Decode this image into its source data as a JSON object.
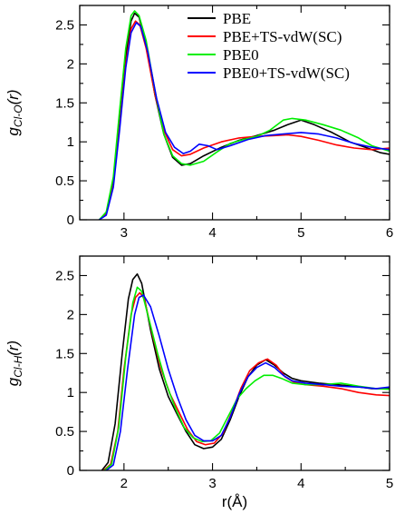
{
  "chart_data": [
    {
      "type": "line",
      "ylabel_main": "g",
      "ylabel_sub": "Cl-O",
      "ylabel_tail": "(r)",
      "xlim": [
        2.5,
        6
      ],
      "ylim": [
        0,
        2.75
      ],
      "xticks": [
        3,
        4,
        5,
        6
      ],
      "xticklabels": [
        "3",
        "4",
        "5",
        "6"
      ],
      "yticks": [
        0,
        0.5,
        1,
        1.5,
        2,
        2.5
      ],
      "yticklabels": [
        "0",
        "0.5",
        "1",
        "1.5",
        "2",
        "2.5"
      ],
      "legend_position": "top-right",
      "series": [
        {
          "name": "PBE",
          "color": "#000000",
          "points": [
            [
              2.72,
              0
            ],
            [
              2.8,
              0.08
            ],
            [
              2.88,
              0.5
            ],
            [
              2.95,
              1.3
            ],
            [
              3.02,
              2.1
            ],
            [
              3.08,
              2.55
            ],
            [
              3.12,
              2.65
            ],
            [
              3.17,
              2.6
            ],
            [
              3.25,
              2.25
            ],
            [
              3.35,
              1.6
            ],
            [
              3.45,
              1.1
            ],
            [
              3.55,
              0.8
            ],
            [
              3.65,
              0.7
            ],
            [
              3.75,
              0.72
            ],
            [
              3.9,
              0.82
            ],
            [
              4.1,
              0.93
            ],
            [
              4.3,
              1.02
            ],
            [
              4.5,
              1.08
            ],
            [
              4.7,
              1.15
            ],
            [
              4.85,
              1.22
            ],
            [
              5.0,
              1.28
            ],
            [
              5.15,
              1.22
            ],
            [
              5.35,
              1.12
            ],
            [
              5.55,
              1.0
            ],
            [
              5.75,
              0.92
            ],
            [
              5.9,
              0.86
            ],
            [
              6.0,
              0.84
            ]
          ]
        },
        {
          "name": "PBE+TS-vdW(SC)",
          "color": "#ff0000",
          "points": [
            [
              2.72,
              0
            ],
            [
              2.8,
              0.07
            ],
            [
              2.88,
              0.45
            ],
            [
              2.95,
              1.2
            ],
            [
              3.02,
              2.0
            ],
            [
              3.08,
              2.45
            ],
            [
              3.13,
              2.55
            ],
            [
              3.18,
              2.5
            ],
            [
              3.25,
              2.2
            ],
            [
              3.35,
              1.6
            ],
            [
              3.45,
              1.15
            ],
            [
              3.55,
              0.9
            ],
            [
              3.65,
              0.82
            ],
            [
              3.75,
              0.84
            ],
            [
              3.9,
              0.92
            ],
            [
              4.1,
              1.0
            ],
            [
              4.3,
              1.05
            ],
            [
              4.5,
              1.07
            ],
            [
              4.7,
              1.08
            ],
            [
              4.85,
              1.09
            ],
            [
              5.0,
              1.07
            ],
            [
              5.2,
              1.02
            ],
            [
              5.4,
              0.96
            ],
            [
              5.6,
              0.92
            ],
            [
              5.8,
              0.9
            ],
            [
              6.0,
              0.92
            ]
          ]
        },
        {
          "name": "PBE0",
          "color": "#00ee00",
          "points": [
            [
              2.72,
              0
            ],
            [
              2.8,
              0.1
            ],
            [
              2.88,
              0.55
            ],
            [
              2.95,
              1.4
            ],
            [
              3.02,
              2.2
            ],
            [
              3.08,
              2.62
            ],
            [
              3.12,
              2.68
            ],
            [
              3.17,
              2.62
            ],
            [
              3.25,
              2.3
            ],
            [
              3.35,
              1.65
            ],
            [
              3.45,
              1.1
            ],
            [
              3.55,
              0.82
            ],
            [
              3.65,
              0.72
            ],
            [
              3.75,
              0.7
            ],
            [
              3.9,
              0.75
            ],
            [
              4.05,
              0.87
            ],
            [
              4.2,
              0.98
            ],
            [
              4.35,
              1.03
            ],
            [
              4.5,
              1.07
            ],
            [
              4.65,
              1.15
            ],
            [
              4.8,
              1.28
            ],
            [
              4.9,
              1.3
            ],
            [
              5.05,
              1.28
            ],
            [
              5.25,
              1.22
            ],
            [
              5.45,
              1.15
            ],
            [
              5.65,
              1.05
            ],
            [
              5.8,
              0.95
            ],
            [
              6.0,
              0.88
            ]
          ]
        },
        {
          "name": "PBE0+TS-vdW(SC)",
          "color": "#0000ff",
          "points": [
            [
              2.72,
              0
            ],
            [
              2.8,
              0.06
            ],
            [
              2.88,
              0.42
            ],
            [
              2.95,
              1.15
            ],
            [
              3.02,
              1.95
            ],
            [
              3.08,
              2.4
            ],
            [
              3.14,
              2.53
            ],
            [
              3.19,
              2.48
            ],
            [
              3.27,
              2.15
            ],
            [
              3.37,
              1.55
            ],
            [
              3.47,
              1.12
            ],
            [
              3.57,
              0.93
            ],
            [
              3.67,
              0.85
            ],
            [
              3.75,
              0.88
            ],
            [
              3.85,
              0.97
            ],
            [
              3.95,
              0.95
            ],
            [
              4.05,
              0.9
            ],
            [
              4.2,
              0.95
            ],
            [
              4.4,
              1.03
            ],
            [
              4.6,
              1.08
            ],
            [
              4.8,
              1.1
            ],
            [
              5.0,
              1.12
            ],
            [
              5.2,
              1.1
            ],
            [
              5.4,
              1.05
            ],
            [
              5.6,
              0.98
            ],
            [
              5.8,
              0.93
            ],
            [
              6.0,
              0.9
            ]
          ]
        }
      ],
      "legend_labels": [
        "PBE",
        "PBE+TS-vdW(SC)",
        "PBE0",
        "PBE0+TS-vdW(SC)"
      ]
    },
    {
      "type": "line",
      "ylabel_main": "g",
      "ylabel_sub": "Cl-H",
      "ylabel_tail": "(r)",
      "xlabel": "r(Å)",
      "xlim": [
        1.5,
        5
      ],
      "ylim": [
        0,
        2.75
      ],
      "xticks": [
        2,
        3,
        4,
        5
      ],
      "xticklabels": [
        "2",
        "3",
        "4",
        "5"
      ],
      "yticks": [
        0,
        0.5,
        1,
        1.5,
        2,
        2.5
      ],
      "yticklabels": [
        "0",
        "0.5",
        "1",
        "1.5",
        "2",
        "2.5"
      ],
      "series": [
        {
          "name": "PBE",
          "color": "#000000",
          "points": [
            [
              1.75,
              0
            ],
            [
              1.82,
              0.1
            ],
            [
              1.9,
              0.6
            ],
            [
              1.98,
              1.5
            ],
            [
              2.05,
              2.2
            ],
            [
              2.1,
              2.45
            ],
            [
              2.15,
              2.52
            ],
            [
              2.2,
              2.4
            ],
            [
              2.3,
              1.8
            ],
            [
              2.4,
              1.3
            ],
            [
              2.5,
              0.95
            ],
            [
              2.6,
              0.72
            ],
            [
              2.7,
              0.5
            ],
            [
              2.8,
              0.33
            ],
            [
              2.9,
              0.28
            ],
            [
              3.0,
              0.3
            ],
            [
              3.1,
              0.4
            ],
            [
              3.2,
              0.65
            ],
            [
              3.3,
              0.95
            ],
            [
              3.4,
              1.2
            ],
            [
              3.5,
              1.35
            ],
            [
              3.6,
              1.42
            ],
            [
              3.7,
              1.35
            ],
            [
              3.8,
              1.25
            ],
            [
              3.9,
              1.18
            ],
            [
              4.0,
              1.15
            ],
            [
              4.2,
              1.12
            ],
            [
              4.4,
              1.1
            ],
            [
              4.6,
              1.08
            ],
            [
              4.8,
              1.05
            ],
            [
              5.0,
              1.05
            ]
          ]
        },
        {
          "name": "PBE+TS-vdW(SC)",
          "color": "#ff0000",
          "points": [
            [
              1.77,
              0
            ],
            [
              1.85,
              0.08
            ],
            [
              1.93,
              0.5
            ],
            [
              2.0,
              1.3
            ],
            [
              2.08,
              2.0
            ],
            [
              2.13,
              2.22
            ],
            [
              2.18,
              2.28
            ],
            [
              2.23,
              2.2
            ],
            [
              2.32,
              1.75
            ],
            [
              2.42,
              1.3
            ],
            [
              2.52,
              0.98
            ],
            [
              2.62,
              0.75
            ],
            [
              2.72,
              0.52
            ],
            [
              2.82,
              0.37
            ],
            [
              2.92,
              0.33
            ],
            [
              3.02,
              0.35
            ],
            [
              3.12,
              0.48
            ],
            [
              3.22,
              0.75
            ],
            [
              3.32,
              1.05
            ],
            [
              3.42,
              1.28
            ],
            [
              3.52,
              1.38
            ],
            [
              3.62,
              1.43
            ],
            [
              3.72,
              1.35
            ],
            [
              3.82,
              1.2
            ],
            [
              3.92,
              1.13
            ],
            [
              4.05,
              1.1
            ],
            [
              4.25,
              1.08
            ],
            [
              4.45,
              1.05
            ],
            [
              4.65,
              1.0
            ],
            [
              4.85,
              0.97
            ],
            [
              5.0,
              0.96
            ]
          ]
        },
        {
          "name": "PBE0",
          "color": "#00ee00",
          "points": [
            [
              1.78,
              0
            ],
            [
              1.86,
              0.08
            ],
            [
              1.94,
              0.55
            ],
            [
              2.02,
              1.45
            ],
            [
              2.1,
              2.15
            ],
            [
              2.15,
              2.35
            ],
            [
              2.2,
              2.3
            ],
            [
              2.28,
              1.95
            ],
            [
              2.38,
              1.5
            ],
            [
              2.48,
              1.1
            ],
            [
              2.58,
              0.8
            ],
            [
              2.68,
              0.55
            ],
            [
              2.78,
              0.42
            ],
            [
              2.88,
              0.37
            ],
            [
              2.98,
              0.38
            ],
            [
              3.08,
              0.48
            ],
            [
              3.18,
              0.7
            ],
            [
              3.28,
              0.92
            ],
            [
              3.38,
              1.05
            ],
            [
              3.48,
              1.15
            ],
            [
              3.58,
              1.22
            ],
            [
              3.68,
              1.22
            ],
            [
              3.78,
              1.18
            ],
            [
              3.9,
              1.12
            ],
            [
              4.05,
              1.1
            ],
            [
              4.25,
              1.1
            ],
            [
              4.45,
              1.12
            ],
            [
              4.65,
              1.08
            ],
            [
              4.85,
              1.05
            ],
            [
              5.0,
              1.04
            ]
          ]
        },
        {
          "name": "PBE0+TS-vdW(SC)",
          "color": "#0000ff",
          "points": [
            [
              1.8,
              0
            ],
            [
              1.88,
              0.07
            ],
            [
              1.96,
              0.5
            ],
            [
              2.04,
              1.3
            ],
            [
              2.12,
              2.0
            ],
            [
              2.17,
              2.22
            ],
            [
              2.22,
              2.25
            ],
            [
              2.3,
              2.1
            ],
            [
              2.4,
              1.72
            ],
            [
              2.5,
              1.3
            ],
            [
              2.6,
              0.95
            ],
            [
              2.7,
              0.65
            ],
            [
              2.8,
              0.45
            ],
            [
              2.9,
              0.38
            ],
            [
              3.0,
              0.38
            ],
            [
              3.1,
              0.45
            ],
            [
              3.2,
              0.68
            ],
            [
              3.3,
              0.98
            ],
            [
              3.4,
              1.2
            ],
            [
              3.5,
              1.32
            ],
            [
              3.6,
              1.38
            ],
            [
              3.7,
              1.32
            ],
            [
              3.8,
              1.22
            ],
            [
              3.9,
              1.15
            ],
            [
              4.05,
              1.12
            ],
            [
              4.25,
              1.1
            ],
            [
              4.45,
              1.08
            ],
            [
              4.65,
              1.07
            ],
            [
              4.85,
              1.05
            ],
            [
              5.0,
              1.07
            ]
          ]
        }
      ]
    }
  ]
}
